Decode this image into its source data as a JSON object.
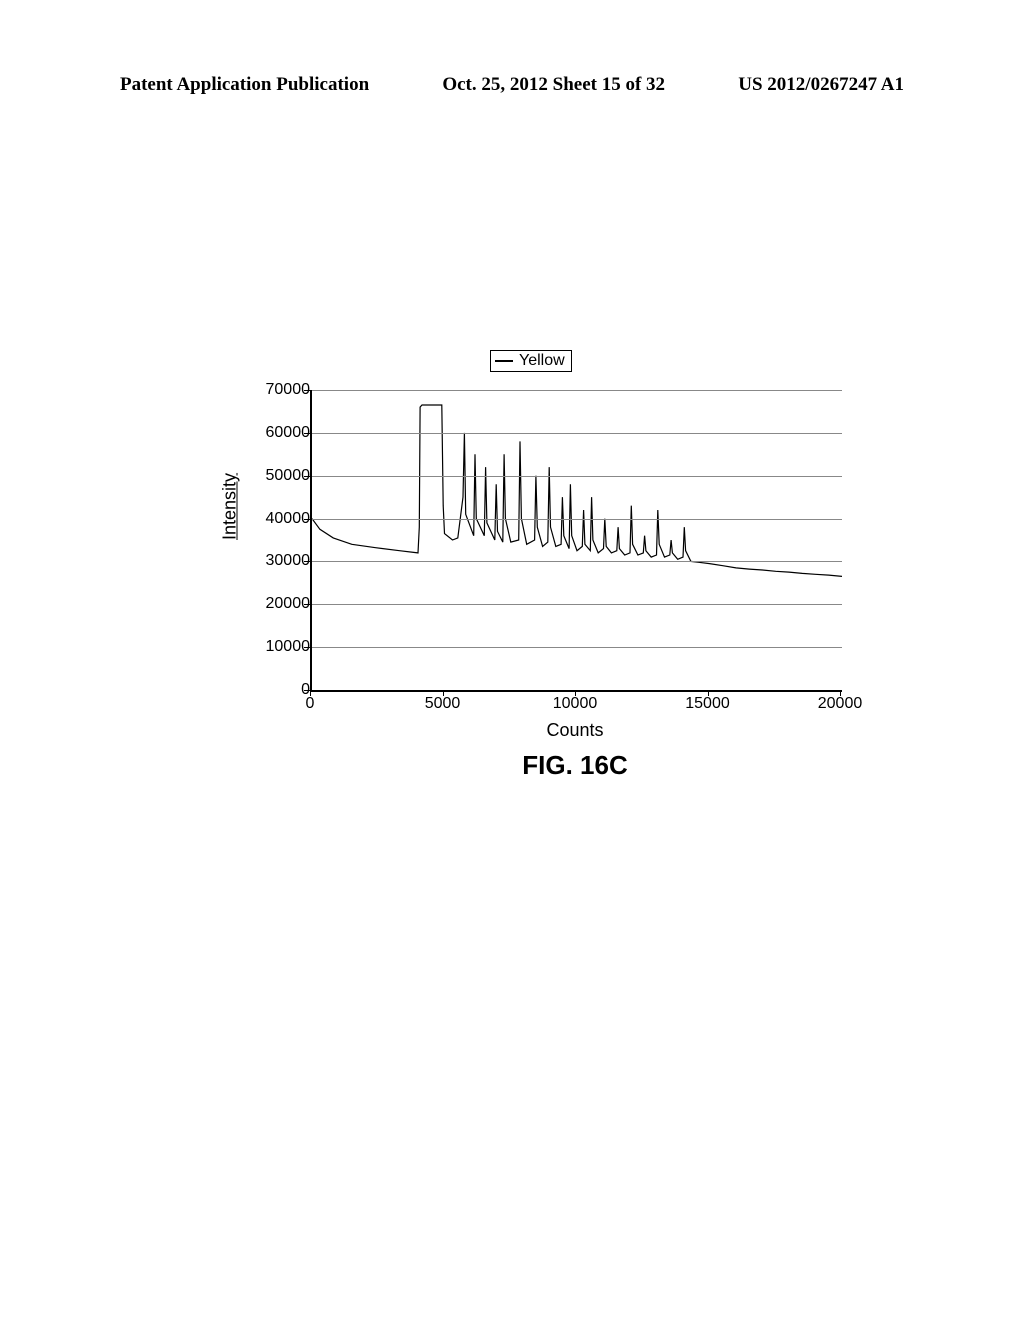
{
  "header": {
    "left": "Patent Application Publication",
    "center": "Oct. 25, 2012  Sheet 15 of 32",
    "right": "US 2012/0267247 A1"
  },
  "legend": {
    "label": "Yellow",
    "line_color": "#000000"
  },
  "chart": {
    "type": "line",
    "xlabel": "Counts",
    "ylabel": "Intensity",
    "caption": "FIG. 16C",
    "xlim": [
      0,
      20000
    ],
    "ylim": [
      0,
      70000
    ],
    "xticks": [
      0,
      5000,
      10000,
      15000,
      20000
    ],
    "yticks": [
      0,
      10000,
      20000,
      30000,
      40000,
      50000,
      60000,
      70000
    ],
    "grid_color": "#888888",
    "axis_color": "#000000",
    "background_color": "#ffffff",
    "line_color": "#000000",
    "line_width": 1.2,
    "label_fontsize": 18,
    "tick_fontsize": 16,
    "caption_fontsize": 26,
    "xtick_labels": [
      "0",
      "5000",
      "10000",
      "15000",
      "20000"
    ],
    "ytick_labels": [
      "0",
      "10000",
      "20000",
      "30000",
      "40000",
      "50000",
      "60000",
      "70000"
    ],
    "series": {
      "name": "Yellow",
      "x": [
        0,
        300,
        800,
        1500,
        2400,
        3300,
        4000,
        4050,
        4080,
        4150,
        4900,
        4950,
        5000,
        5300,
        5500,
        5700,
        5750,
        5800,
        6100,
        6150,
        6200,
        6500,
        6550,
        6600,
        6900,
        6950,
        7000,
        7200,
        7250,
        7300,
        7500,
        7800,
        7850,
        7900,
        8100,
        8400,
        8450,
        8500,
        8700,
        8900,
        8950,
        9000,
        9200,
        9400,
        9450,
        9500,
        9700,
        9750,
        9800,
        10000,
        10200,
        10250,
        10300,
        10500,
        10550,
        10600,
        10800,
        11000,
        11050,
        11100,
        11300,
        11500,
        11550,
        11600,
        11800,
        12000,
        12050,
        12100,
        12300,
        12500,
        12550,
        12600,
        12800,
        13000,
        13050,
        13100,
        13300,
        13500,
        13550,
        13600,
        13800,
        14000,
        14050,
        14100,
        14300,
        14600,
        15000,
        15500,
        16000,
        16500,
        17000,
        17500,
        18000,
        18500,
        19000,
        19500,
        20000
      ],
      "y": [
        40000,
        37500,
        35500,
        34000,
        33200,
        32500,
        32000,
        38000,
        66000,
        66500,
        66500,
        43000,
        36500,
        35000,
        35500,
        45000,
        60000,
        41000,
        36000,
        55000,
        40000,
        36000,
        52000,
        39000,
        35000,
        48000,
        37000,
        34500,
        55000,
        40000,
        34500,
        35000,
        58000,
        40000,
        34000,
        35000,
        50000,
        38000,
        33500,
        34500,
        52000,
        38000,
        33500,
        34000,
        45000,
        36000,
        33000,
        48000,
        36000,
        32500,
        33500,
        42000,
        34000,
        32500,
        45000,
        35000,
        32000,
        33000,
        40000,
        33500,
        32000,
        32500,
        38000,
        33000,
        31500,
        32000,
        43000,
        34000,
        31500,
        32000,
        36000,
        32500,
        31000,
        31500,
        42000,
        34000,
        31000,
        31500,
        35000,
        32000,
        30500,
        31000,
        38000,
        32500,
        30000,
        29800,
        29500,
        29000,
        28500,
        28200,
        28000,
        27700,
        27500,
        27200,
        27000,
        26800,
        26500
      ]
    }
  }
}
